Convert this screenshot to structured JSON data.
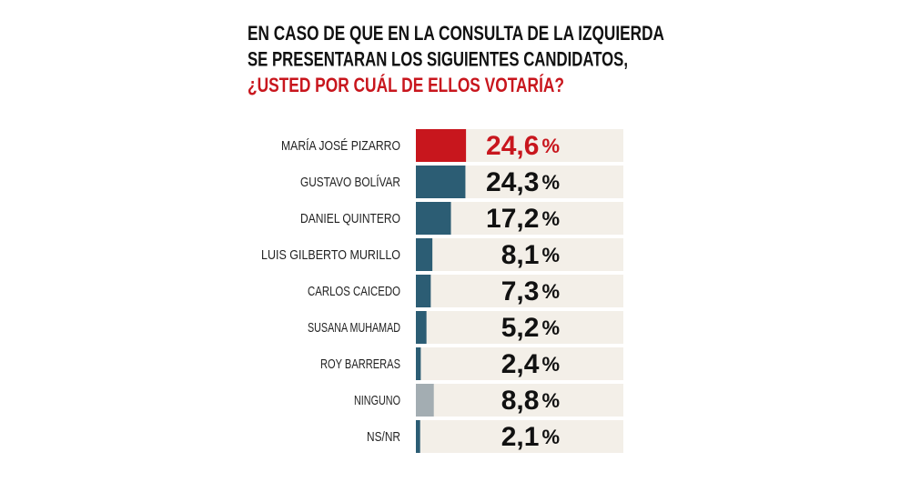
{
  "chart_data": {
    "type": "bar",
    "orientation": "horizontal",
    "title": [
      "EN CASO DE QUE EN LA CONSULTA DE LA IZQUIERDA",
      "SE PRESENTARAN LOS SIGUIENTES CANDIDATOS,",
      "¿USTED POR CUÁL DE ELLOS VOTARÍA?"
    ],
    "title_colors": [
      "#111111",
      "#111111",
      "#c8161d"
    ],
    "categories": [
      "MARÍA JOSÉ PIZARRO",
      "GUSTAVO BOLÍVAR",
      "DANIEL QUINTERO",
      "LUIS GILBERTO MURILLO",
      "CARLOS CAICEDO",
      "SUSANA MUHAMAD",
      "ROY BARRERAS",
      "NINGUNO",
      "NS/NR"
    ],
    "values": [
      24.6,
      24.3,
      17.2,
      8.1,
      7.3,
      5.2,
      2.4,
      8.8,
      2.1
    ],
    "value_labels": [
      "24,6%",
      "24,3%",
      "17,2%",
      "8,1%",
      "7,3%",
      "5,2%",
      "2,4%",
      "8,8%",
      "2,1%"
    ],
    "colors": [
      "#c8161d",
      "#2c5d74",
      "#2c5d74",
      "#2c5d74",
      "#2c5d74",
      "#2c5d74",
      "#2c5d74",
      "#a3adb2",
      "#2c5d74"
    ],
    "value_label_colors": [
      "#c8161d",
      "#111111",
      "#111111",
      "#111111",
      "#111111",
      "#111111",
      "#111111",
      "#111111",
      "#111111"
    ],
    "background_color": "#f3efe8"
  }
}
